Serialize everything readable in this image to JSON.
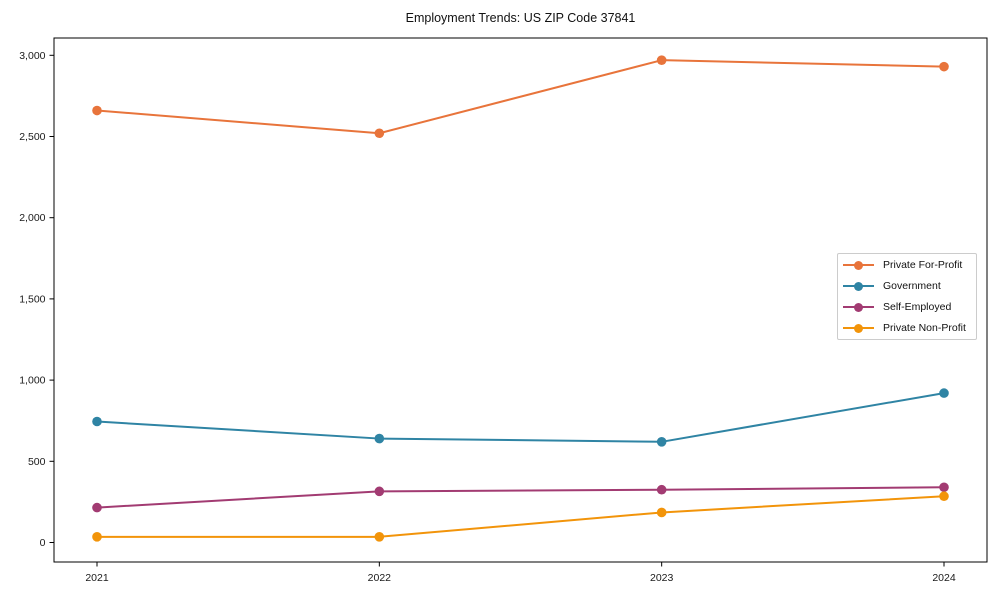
{
  "chart_data": {
    "type": "line",
    "title": "Employment Trends: US ZIP Code 37841",
    "xlabel": "",
    "ylabel": "",
    "x": [
      "2021",
      "2022",
      "2023",
      "2024"
    ],
    "series": [
      {
        "name": "Private For-Profit",
        "color": "#e8743b",
        "values": [
          2660,
          2520,
          2970,
          2930
        ]
      },
      {
        "name": "Government",
        "color": "#2f84a4",
        "values": [
          745,
          640,
          620,
          920
        ]
      },
      {
        "name": "Self-Employed",
        "color": "#a23b72",
        "values": [
          215,
          315,
          325,
          340
        ]
      },
      {
        "name": "Private Non-Profit",
        "color": "#f2940a",
        "values": [
          35,
          35,
          185,
          285
        ]
      }
    ],
    "yticks": [
      0,
      500,
      1000,
      1500,
      2000,
      2500,
      3000
    ],
    "ytick_labels": [
      "0",
      "500",
      "1,000",
      "1,500",
      "2,000",
      "2,500",
      "3,000"
    ],
    "ylim": [
      -120,
      3100
    ],
    "grid": false,
    "marker": "circle",
    "legend_position": "right-middle",
    "axis_color": "#000000",
    "tick_label_color": "#1a1a1a"
  }
}
